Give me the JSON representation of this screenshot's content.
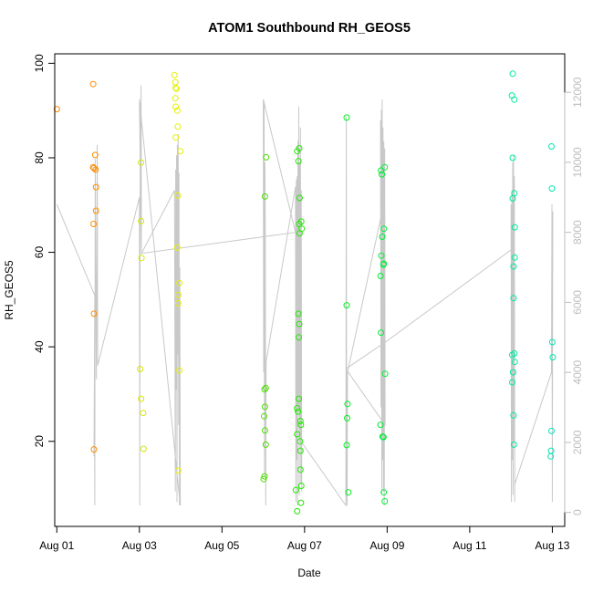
{
  "chart_data": {
    "type": "scatter",
    "title": "ATOM1 Southbound RH_GEOS5",
    "xlabel": "Date",
    "ylabel": "RH_GEOS5",
    "xlim": [
      -0.05,
      12.3
    ],
    "ylim": [
      2,
      102
    ],
    "xticks": [
      {
        "x": 0,
        "label": "Aug 01"
      },
      {
        "x": 2,
        "label": "Aug 03"
      },
      {
        "x": 4,
        "label": "Aug 05"
      },
      {
        "x": 6,
        "label": "Aug 07"
      },
      {
        "x": 8,
        "label": "Aug 09"
      },
      {
        "x": 10,
        "label": "Aug 11"
      },
      {
        "x": 12,
        "label": "Aug 13"
      }
    ],
    "yticks": [
      20,
      40,
      60,
      80,
      100
    ],
    "y2lim": [
      -400,
      13100
    ],
    "y2ticks": [
      0,
      2000,
      4000,
      6000,
      8000,
      10000,
      12000
    ],
    "y2_color": "#bdbdbd",
    "altitude_line_color": "#c8c8c8",
    "x_axis_is_days_after": "Aug 01",
    "points": [
      {
        "x": 0.0,
        "y": 90.3,
        "color": "#ff8c00"
      },
      {
        "x": 0.88,
        "y": 95.6,
        "color": "#ff8c00"
      },
      {
        "x": 0.88,
        "y": 78.0,
        "color": "#ff8c00"
      },
      {
        "x": 0.9,
        "y": 77.8,
        "color": "#ff8c00"
      },
      {
        "x": 0.94,
        "y": 77.5,
        "color": "#ff8c00"
      },
      {
        "x": 0.93,
        "y": 80.6,
        "color": "#ff8c00"
      },
      {
        "x": 0.95,
        "y": 73.8,
        "color": "#ff8c00"
      },
      {
        "x": 0.95,
        "y": 68.8,
        "color": "#ff8c00"
      },
      {
        "x": 0.89,
        "y": 66.0,
        "color": "#ff8c00"
      },
      {
        "x": 0.9,
        "y": 47.0,
        "color": "#ff8c00"
      },
      {
        "x": 0.9,
        "y": 18.3,
        "color": "#ff8c00"
      },
      {
        "x": 2.04,
        "y": 79.0,
        "color": "#d4e600"
      },
      {
        "x": 2.04,
        "y": 66.6,
        "color": "#d4e600"
      },
      {
        "x": 2.05,
        "y": 58.8,
        "color": "#d4e600"
      },
      {
        "x": 2.02,
        "y": 35.3,
        "color": "#d4e600"
      },
      {
        "x": 2.04,
        "y": 29.0,
        "color": "#d4e600"
      },
      {
        "x": 2.09,
        "y": 26.0,
        "color": "#d4e600"
      },
      {
        "x": 2.1,
        "y": 18.4,
        "color": "#d4e600"
      },
      {
        "x": 2.85,
        "y": 97.5,
        "color": "#e6f000"
      },
      {
        "x": 2.87,
        "y": 96.0,
        "color": "#e6f000"
      },
      {
        "x": 2.88,
        "y": 94.8,
        "color": "#e6f000"
      },
      {
        "x": 2.9,
        "y": 94.6,
        "color": "#e6f000"
      },
      {
        "x": 2.87,
        "y": 92.6,
        "color": "#e6f000"
      },
      {
        "x": 2.88,
        "y": 90.8,
        "color": "#e6f000"
      },
      {
        "x": 2.92,
        "y": 90.0,
        "color": "#e6f000"
      },
      {
        "x": 2.93,
        "y": 86.6,
        "color": "#e6f000"
      },
      {
        "x": 2.88,
        "y": 84.3,
        "color": "#e6f000"
      },
      {
        "x": 2.99,
        "y": 81.4,
        "color": "#e6f000"
      },
      {
        "x": 2.93,
        "y": 72.0,
        "color": "#e6f000"
      },
      {
        "x": 2.92,
        "y": 61.0,
        "color": "#e6f000"
      },
      {
        "x": 2.97,
        "y": 53.5,
        "color": "#e6f000"
      },
      {
        "x": 2.94,
        "y": 51.0,
        "color": "#e6f000"
      },
      {
        "x": 2.94,
        "y": 49.2,
        "color": "#e6f000"
      },
      {
        "x": 2.97,
        "y": 35.0,
        "color": "#e6f000"
      },
      {
        "x": 2.94,
        "y": 13.8,
        "color": "#e6f000"
      },
      {
        "x": 5.07,
        "y": 80.1,
        "color": "#4cdf00"
      },
      {
        "x": 5.04,
        "y": 71.8,
        "color": "#4cdf00"
      },
      {
        "x": 5.03,
        "y": 31.0,
        "color": "#4cdf00"
      },
      {
        "x": 5.06,
        "y": 31.3,
        "color": "#4cdf00"
      },
      {
        "x": 5.04,
        "y": 27.3,
        "color": "#4cdf00"
      },
      {
        "x": 5.02,
        "y": 25.3,
        "color": "#4cdf00"
      },
      {
        "x": 5.04,
        "y": 22.3,
        "color": "#4cdf00"
      },
      {
        "x": 5.06,
        "y": 19.3,
        "color": "#4cdf00"
      },
      {
        "x": 5.01,
        "y": 12.0,
        "color": "#4cdf00"
      },
      {
        "x": 5.03,
        "y": 12.6,
        "color": "#4cdf00"
      },
      {
        "x": 5.82,
        "y": 81.4,
        "color": "#20e800"
      },
      {
        "x": 5.87,
        "y": 82.0,
        "color": "#20e800"
      },
      {
        "x": 5.85,
        "y": 79.3,
        "color": "#20e800"
      },
      {
        "x": 5.88,
        "y": 71.5,
        "color": "#20e800"
      },
      {
        "x": 5.87,
        "y": 66.0,
        "color": "#20e800"
      },
      {
        "x": 5.92,
        "y": 66.5,
        "color": "#20e800"
      },
      {
        "x": 5.93,
        "y": 65.0,
        "color": "#20e800"
      },
      {
        "x": 5.88,
        "y": 64.0,
        "color": "#20e800"
      },
      {
        "x": 5.85,
        "y": 47.0,
        "color": "#20e800"
      },
      {
        "x": 5.87,
        "y": 44.8,
        "color": "#20e800"
      },
      {
        "x": 5.86,
        "y": 42.0,
        "color": "#20e800"
      },
      {
        "x": 5.86,
        "y": 29.0,
        "color": "#20e800"
      },
      {
        "x": 5.82,
        "y": 27.0,
        "color": "#20e800"
      },
      {
        "x": 5.84,
        "y": 26.3,
        "color": "#20e800"
      },
      {
        "x": 5.9,
        "y": 24.3,
        "color": "#20e800"
      },
      {
        "x": 5.91,
        "y": 23.5,
        "color": "#20e800"
      },
      {
        "x": 5.82,
        "y": 21.5,
        "color": "#20e800"
      },
      {
        "x": 5.89,
        "y": 20.0,
        "color": "#20e800"
      },
      {
        "x": 5.9,
        "y": 18.0,
        "color": "#20e800"
      },
      {
        "x": 5.9,
        "y": 14.0,
        "color": "#20e800"
      },
      {
        "x": 5.92,
        "y": 10.6,
        "color": "#20e800"
      },
      {
        "x": 5.79,
        "y": 9.7,
        "color": "#20e800"
      },
      {
        "x": 5.91,
        "y": 7.0,
        "color": "#20e800"
      },
      {
        "x": 5.82,
        "y": 5.2,
        "color": "#20e800"
      },
      {
        "x": 7.02,
        "y": 88.5,
        "color": "#00ef20"
      },
      {
        "x": 7.02,
        "y": 48.8,
        "color": "#00ef20"
      },
      {
        "x": 7.04,
        "y": 27.9,
        "color": "#00ef20"
      },
      {
        "x": 7.03,
        "y": 24.9,
        "color": "#00ef20"
      },
      {
        "x": 7.02,
        "y": 19.2,
        "color": "#00ef20"
      },
      {
        "x": 7.06,
        "y": 9.2,
        "color": "#00ef20"
      },
      {
        "x": 7.85,
        "y": 77.3,
        "color": "#00ef38"
      },
      {
        "x": 7.87,
        "y": 76.5,
        "color": "#00ef38"
      },
      {
        "x": 7.94,
        "y": 78.0,
        "color": "#00ef38"
      },
      {
        "x": 7.92,
        "y": 65.0,
        "color": "#00ef38"
      },
      {
        "x": 7.88,
        "y": 63.3,
        "color": "#00ef38"
      },
      {
        "x": 7.86,
        "y": 59.3,
        "color": "#00ef38"
      },
      {
        "x": 7.92,
        "y": 57.6,
        "color": "#00ef38"
      },
      {
        "x": 7.91,
        "y": 57.4,
        "color": "#00ef38"
      },
      {
        "x": 7.84,
        "y": 55.0,
        "color": "#00ef38"
      },
      {
        "x": 7.85,
        "y": 43.0,
        "color": "#00ef38"
      },
      {
        "x": 7.95,
        "y": 34.3,
        "color": "#00ef38"
      },
      {
        "x": 7.84,
        "y": 23.5,
        "color": "#00ef38"
      },
      {
        "x": 7.89,
        "y": 21.0,
        "color": "#00ef38"
      },
      {
        "x": 7.91,
        "y": 20.9,
        "color": "#00ef38"
      },
      {
        "x": 7.92,
        "y": 9.2,
        "color": "#00ef38"
      },
      {
        "x": 7.94,
        "y": 7.3,
        "color": "#00ef38"
      },
      {
        "x": 11.04,
        "y": 97.8,
        "color": "#00eaa0"
      },
      {
        "x": 11.02,
        "y": 93.2,
        "color": "#00eaa0"
      },
      {
        "x": 11.08,
        "y": 92.3,
        "color": "#00eaa0"
      },
      {
        "x": 11.04,
        "y": 80.0,
        "color": "#00eaa0"
      },
      {
        "x": 11.08,
        "y": 72.5,
        "color": "#00eaa0"
      },
      {
        "x": 11.04,
        "y": 71.4,
        "color": "#00eaa0"
      },
      {
        "x": 11.09,
        "y": 65.3,
        "color": "#00eaa0"
      },
      {
        "x": 11.09,
        "y": 58.9,
        "color": "#00eaa0"
      },
      {
        "x": 11.06,
        "y": 57.0,
        "color": "#00eaa0"
      },
      {
        "x": 11.06,
        "y": 50.3,
        "color": "#00eaa0"
      },
      {
        "x": 11.03,
        "y": 38.3,
        "color": "#00eaa0"
      },
      {
        "x": 11.08,
        "y": 38.6,
        "color": "#00eaa0"
      },
      {
        "x": 11.09,
        "y": 36.8,
        "color": "#00eaa0"
      },
      {
        "x": 11.05,
        "y": 34.6,
        "color": "#00eaa0"
      },
      {
        "x": 11.03,
        "y": 32.5,
        "color": "#00eaa0"
      },
      {
        "x": 11.06,
        "y": 25.5,
        "color": "#00eaa0"
      },
      {
        "x": 11.07,
        "y": 19.3,
        "color": "#00eaa0"
      },
      {
        "x": 11.98,
        "y": 82.4,
        "color": "#00e6b4"
      },
      {
        "x": 11.99,
        "y": 73.5,
        "color": "#00e6b4"
      },
      {
        "x": 12.0,
        "y": 41.0,
        "color": "#00e6b4"
      },
      {
        "x": 12.01,
        "y": 37.8,
        "color": "#00e6b4"
      },
      {
        "x": 11.98,
        "y": 22.2,
        "color": "#00e6b4"
      },
      {
        "x": 11.97,
        "y": 18.0,
        "color": "#00e6b4"
      },
      {
        "x": 11.96,
        "y": 16.8,
        "color": "#00e6b4"
      }
    ],
    "altitude_polyline": [
      [
        0.0,
        8800
      ],
      [
        0.92,
        6200
      ],
      [
        0.9,
        1600
      ],
      [
        0.91,
        3200
      ],
      [
        0.92,
        200
      ],
      [
        0.93,
        10100
      ],
      [
        0.95,
        4900
      ],
      [
        0.96,
        3800
      ],
      [
        0.97,
        7800
      ],
      [
        0.98,
        10500
      ],
      [
        0.99,
        4200
      ],
      [
        2.0,
        9000
      ],
      [
        2.01,
        200
      ],
      [
        2.02,
        11700
      ],
      [
        2.03,
        8500
      ],
      [
        2.04,
        12200
      ],
      [
        2.05,
        7400
      ],
      [
        2.85,
        9200
      ],
      [
        2.86,
        5200
      ],
      [
        2.87,
        600
      ],
      [
        2.88,
        9800
      ],
      [
        2.89,
        3500
      ],
      [
        2.9,
        10200
      ],
      [
        2.91,
        300
      ],
      [
        2.92,
        10500
      ],
      [
        2.93,
        4500
      ],
      [
        2.94,
        10800
      ],
      [
        2.95,
        2500
      ],
      [
        2.96,
        9700
      ],
      [
        2.97,
        200
      ],
      [
        2.98,
        7000
      ],
      [
        2.99,
        200
      ],
      [
        2.0,
        11800
      ],
      [
        2.05,
        7400
      ],
      [
        5.78,
        8000
      ],
      [
        5.0,
        11800
      ],
      [
        5.01,
        4000
      ],
      [
        5.02,
        11700
      ],
      [
        5.03,
        1000
      ],
      [
        5.04,
        10000
      ],
      [
        5.05,
        8000
      ],
      [
        5.06,
        200
      ],
      [
        5.07,
        4300
      ],
      [
        5.78,
        9300
      ],
      [
        5.79,
        300
      ],
      [
        5.8,
        9500
      ],
      [
        5.81,
        1500
      ],
      [
        5.82,
        9600
      ],
      [
        5.83,
        200
      ],
      [
        5.84,
        10600
      ],
      [
        5.85,
        3000
      ],
      [
        5.86,
        11600
      ],
      [
        5.87,
        500
      ],
      [
        5.88,
        10000
      ],
      [
        5.89,
        2000
      ],
      [
        5.9,
        11000
      ],
      [
        5.91,
        800
      ],
      [
        5.92,
        9200
      ],
      [
        5.93,
        600
      ],
      [
        5.93,
        2000
      ],
      [
        7.0,
        200
      ],
      [
        7.01,
        11300
      ],
      [
        7.02,
        800
      ],
      [
        7.03,
        200
      ],
      [
        7.04,
        4000
      ],
      [
        7.88,
        8600
      ],
      [
        7.84,
        11200
      ],
      [
        7.85,
        3000
      ],
      [
        7.86,
        11500
      ],
      [
        7.87,
        500
      ],
      [
        7.88,
        11800
      ],
      [
        7.89,
        1500
      ],
      [
        7.9,
        11000
      ],
      [
        7.91,
        600
      ],
      [
        7.92,
        10600
      ],
      [
        7.93,
        200
      ],
      [
        7.94,
        10400
      ],
      [
        7.95,
        2500
      ],
      [
        7.0,
        4100
      ],
      [
        8.0,
        4900
      ],
      [
        11.0,
        7500
      ],
      [
        11.0,
        8800
      ],
      [
        11.01,
        300
      ],
      [
        11.02,
        9200
      ],
      [
        11.03,
        1500
      ],
      [
        11.04,
        10000
      ],
      [
        11.05,
        500
      ],
      [
        11.06,
        10200
      ],
      [
        11.07,
        2000
      ],
      [
        11.08,
        9600
      ],
      [
        11.09,
        300
      ],
      [
        11.09,
        800
      ],
      [
        11.98,
        4000
      ],
      [
        11.99,
        8800
      ],
      [
        12.0,
        300
      ],
      [
        12.01,
        8600
      ]
    ]
  }
}
